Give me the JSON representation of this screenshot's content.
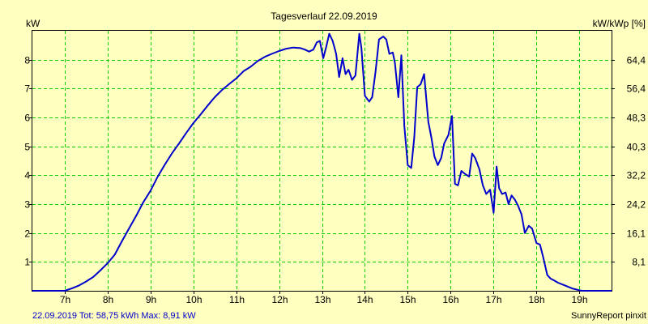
{
  "chart_data": {
    "type": "line",
    "title": "Tagesverlauf 22.09.2019",
    "ylabel_left": "kW",
    "ylabel_right": "kW/kWp [%]",
    "x_unit": "h",
    "xlim": [
      6.25,
      19.75
    ],
    "ylim": [
      0,
      9
    ],
    "x_ticks": [
      7,
      8,
      9,
      10,
      11,
      12,
      13,
      14,
      15,
      16,
      17,
      18,
      19
    ],
    "x_tick_labels": [
      "7h",
      "8h",
      "9h",
      "10h",
      "11h",
      "12h",
      "13h",
      "14h",
      "15h",
      "16h",
      "17h",
      "18h",
      "19h"
    ],
    "y_ticks_left": [
      1,
      2,
      3,
      4,
      5,
      6,
      7,
      8
    ],
    "y_ticks_left_labels": [
      "1",
      "2",
      "3",
      "4",
      "5",
      "6",
      "7",
      "8"
    ],
    "y_ticks_right_labels": [
      "8,1",
      "16,1",
      "24,2",
      "32,2",
      "40,3",
      "48,3",
      "56,4",
      "64,4"
    ],
    "grid": true,
    "colors": {
      "background": "#FFFFC0",
      "grid": "#00CC00",
      "line": "#0000CC",
      "axis": "#000000",
      "footer_left": "#0000CC"
    },
    "series": [
      {
        "x": [
          6.25,
          7.0,
          7.17,
          7.33,
          7.5,
          7.67,
          7.83,
          8.0,
          8.17,
          8.33,
          8.5,
          8.67,
          8.83,
          9.0,
          9.17,
          9.33,
          9.5,
          9.67,
          9.83,
          10.0,
          10.17,
          10.33,
          10.5,
          10.67,
          10.83,
          11.0,
          11.17,
          11.33,
          11.5,
          11.67,
          11.83,
          12.0,
          12.17,
          12.33,
          12.5,
          12.6,
          12.7,
          12.8,
          12.88,
          12.95,
          13.03,
          13.1,
          13.17,
          13.25,
          13.33,
          13.4,
          13.48,
          13.55,
          13.62,
          13.7,
          13.78,
          13.87,
          13.92,
          14.0,
          14.1,
          14.17,
          14.25,
          14.33,
          14.43,
          14.5,
          14.57,
          14.65,
          14.7,
          14.78,
          14.85,
          14.92,
          15.0,
          15.08,
          15.15,
          15.22,
          15.3,
          15.38,
          15.48,
          15.55,
          15.62,
          15.7,
          15.78,
          15.85,
          15.95,
          16.03,
          16.1,
          16.17,
          16.25,
          16.33,
          16.43,
          16.5,
          16.57,
          16.67,
          16.75,
          16.83,
          16.92,
          17.0,
          17.07,
          17.13,
          17.2,
          17.28,
          17.35,
          17.42,
          17.5,
          17.57,
          17.65,
          17.73,
          17.82,
          17.9,
          18.0,
          18.08,
          18.15,
          18.25,
          18.33,
          18.42,
          18.5,
          18.67,
          18.83,
          19.0,
          19.07,
          19.75
        ],
        "values": [
          0,
          0,
          0.08,
          0.18,
          0.32,
          0.48,
          0.7,
          0.95,
          1.25,
          1.7,
          2.15,
          2.6,
          3.05,
          3.45,
          3.95,
          4.35,
          4.75,
          5.1,
          5.45,
          5.8,
          6.1,
          6.4,
          6.7,
          6.95,
          7.15,
          7.35,
          7.6,
          7.75,
          7.95,
          8.1,
          8.2,
          8.3,
          8.38,
          8.42,
          8.4,
          8.35,
          8.28,
          8.35,
          8.6,
          8.65,
          8.05,
          8.45,
          8.9,
          8.65,
          8.2,
          7.4,
          8.05,
          7.5,
          7.65,
          7.3,
          7.45,
          8.9,
          8.4,
          6.75,
          6.55,
          6.7,
          7.6,
          8.7,
          8.8,
          8.7,
          8.2,
          8.25,
          7.9,
          6.7,
          8.15,
          5.7,
          4.35,
          4.25,
          5.3,
          7.05,
          7.15,
          7.5,
          5.85,
          5.3,
          4.65,
          4.35,
          4.6,
          5.1,
          5.4,
          6.05,
          3.7,
          3.65,
          4.15,
          4.05,
          3.95,
          4.75,
          4.6,
          4.2,
          3.65,
          3.35,
          3.5,
          2.7,
          4.3,
          3.55,
          3.35,
          3.4,
          3.0,
          3.3,
          3.15,
          2.95,
          2.65,
          2.0,
          2.25,
          2.15,
          1.65,
          1.6,
          1.2,
          0.55,
          0.42,
          0.35,
          0.28,
          0.18,
          0.08,
          0.02,
          0,
          0
        ]
      }
    ]
  },
  "footer": {
    "left": "22.09.2019 Tot: 58,75 kWh Max: 8,91 kW",
    "right": "SunnyReport pinxit"
  }
}
